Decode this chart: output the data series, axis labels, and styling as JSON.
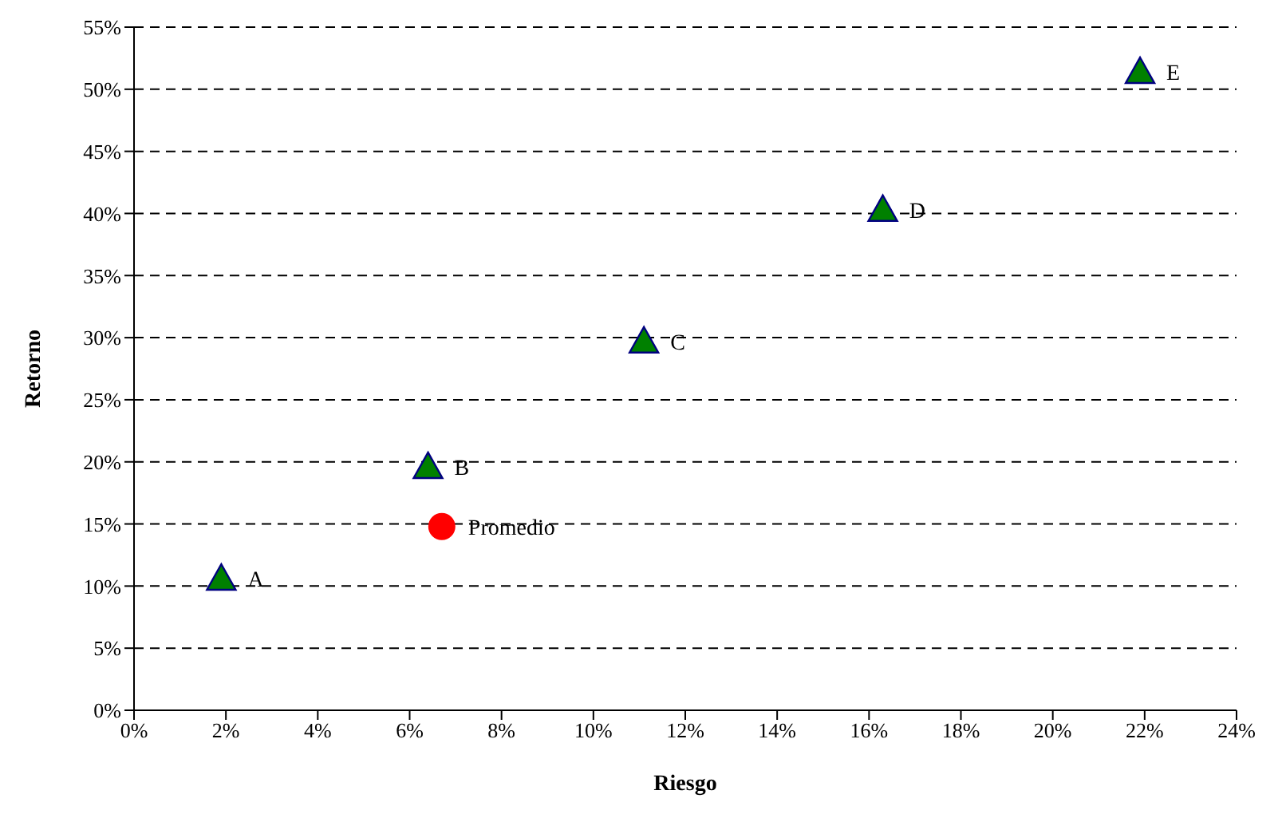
{
  "chart_data": {
    "type": "scatter",
    "xlabel": "Riesgo",
    "ylabel": "Retorno",
    "xlim": [
      0,
      24
    ],
    "xticks": [
      {
        "value": 0,
        "label": "0%"
      },
      {
        "value": 2,
        "label": "2%"
      },
      {
        "value": 4,
        "label": "4%"
      },
      {
        "value": 6,
        "label": "6%"
      },
      {
        "value": 8,
        "label": "8%"
      },
      {
        "value": 10,
        "label": "10%"
      },
      {
        "value": 12,
        "label": "12%"
      },
      {
        "value": 14,
        "label": "14%"
      },
      {
        "value": 16,
        "label": "16%"
      },
      {
        "value": 18,
        "label": "18%"
      },
      {
        "value": 20,
        "label": "20%"
      },
      {
        "value": 22,
        "label": "22%"
      },
      {
        "value": 24,
        "label": "24%"
      }
    ],
    "ylim": [
      0,
      55
    ],
    "yticks": [
      {
        "value": 0,
        "label": "0%"
      },
      {
        "value": 5,
        "label": "5%"
      },
      {
        "value": 10,
        "label": "10%"
      },
      {
        "value": 15,
        "label": "15%"
      },
      {
        "value": 20,
        "label": "20%"
      },
      {
        "value": 25,
        "label": "25%"
      },
      {
        "value": 30,
        "label": "30%"
      },
      {
        "value": 35,
        "label": "35%"
      },
      {
        "value": 40,
        "label": "40%"
      },
      {
        "value": 45,
        "label": "45%"
      },
      {
        "value": 50,
        "label": "50%"
      },
      {
        "value": 55,
        "label": "55%"
      }
    ],
    "grid": "y",
    "legend": false,
    "series": [
      {
        "color": "#008000",
        "marker": "triangle",
        "x": [
          1.9,
          6.4,
          11.1,
          16.3,
          21.9
        ],
        "values": [
          10.6,
          19.6,
          29.7,
          40.3,
          51.4
        ],
        "value_labels": [
          "A",
          "B",
          "C",
          "D",
          "E"
        ]
      },
      {
        "color": "#ff0000",
        "marker": "circle",
        "x": [
          6.7
        ],
        "values": [
          14.8
        ],
        "value_labels": [
          "Promedio"
        ]
      }
    ]
  }
}
